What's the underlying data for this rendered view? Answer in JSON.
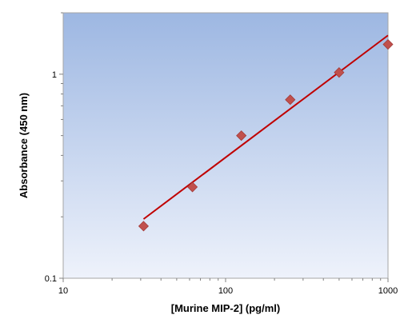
{
  "chart_data": {
    "type": "scatter",
    "title": "",
    "xlabel": "[Murine MIP-2] (pg/ml)",
    "ylabel": "Absorbance (450 nm)",
    "xscale": "log",
    "yscale": "log",
    "xlim": [
      10,
      1000
    ],
    "ylim": [
      0.1,
      2.0
    ],
    "xticks": [
      10,
      100,
      1000
    ],
    "xtick_labels": [
      "10",
      "100",
      "1000"
    ],
    "yticks": [
      0.1,
      1
    ],
    "ytick_labels": [
      "0.1",
      "1"
    ],
    "grid": false,
    "background": "vertical gradient, light blue-white bottom to steel blue top",
    "series": [
      {
        "kind": "points",
        "marker": "diamond",
        "color": "#c0504d",
        "x": [
          31.25,
          62.5,
          125,
          250,
          500,
          1000
        ],
        "y": [
          0.18,
          0.28,
          0.5,
          0.75,
          1.02,
          1.4
        ]
      },
      {
        "kind": "fit-line",
        "color": "#c00000",
        "x": [
          31.25,
          1000
        ],
        "y": [
          0.195,
          1.55
        ]
      }
    ]
  }
}
